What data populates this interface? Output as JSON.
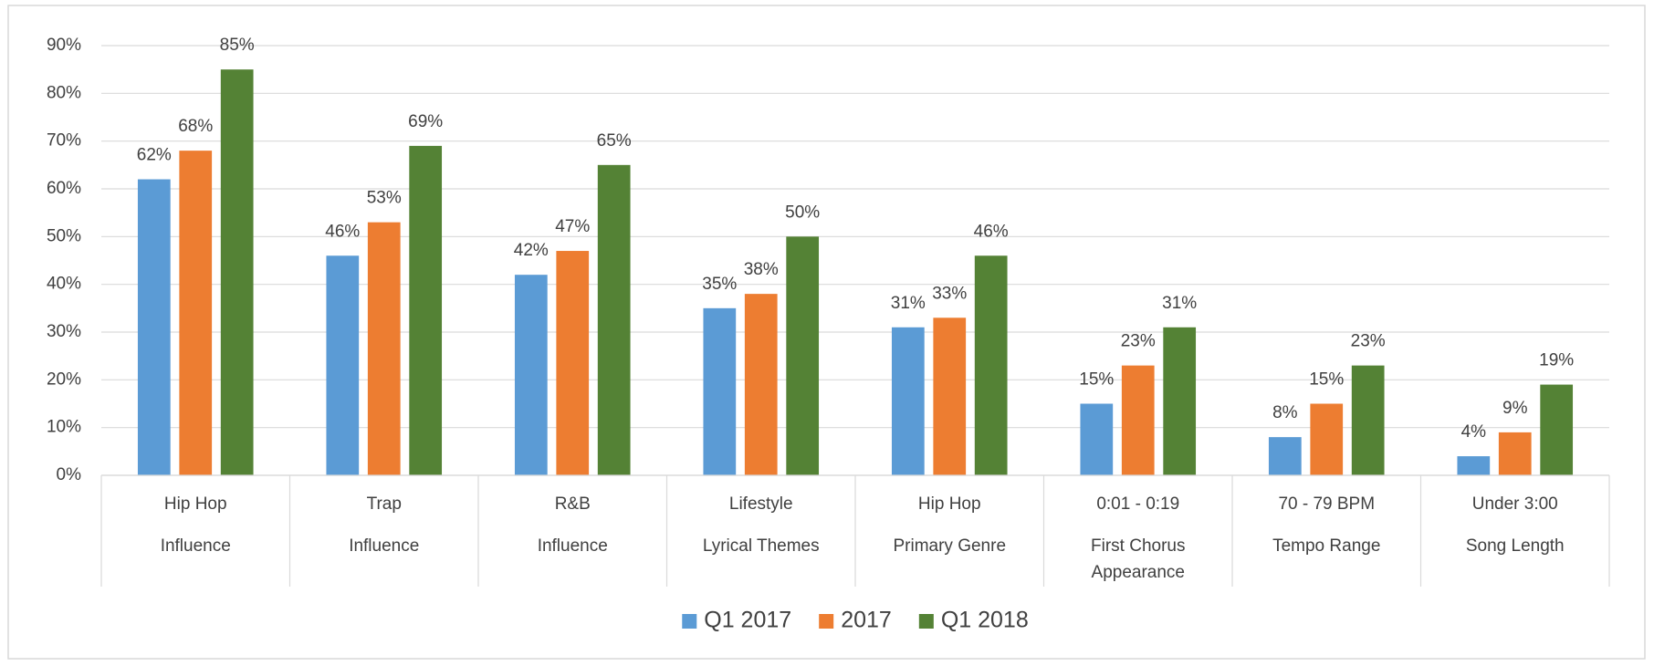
{
  "chart_data": {
    "type": "bar",
    "categories": [
      [
        "Hip Hop",
        "Influence"
      ],
      [
        "Trap",
        "Influence"
      ],
      [
        "R&B",
        "Influence"
      ],
      [
        "Lifestyle",
        "Lyrical Themes"
      ],
      [
        "Hip Hop",
        "Primary Genre"
      ],
      [
        "0:01 - 0:19",
        "First Chorus Appearance"
      ],
      [
        "70 - 79 BPM",
        "Tempo Range"
      ],
      [
        "Under 3:00",
        "Song Length"
      ]
    ],
    "series": [
      {
        "name": "Q1 2017",
        "color": "#5b9bd5",
        "values": [
          62,
          46,
          42,
          35,
          31,
          15,
          8,
          4
        ],
        "value_labels": [
          "62%",
          "46%",
          "42%",
          "35%",
          "31%",
          "15%",
          "8%",
          "4%"
        ]
      },
      {
        "name": "2017",
        "color": "#ed7d31",
        "values": [
          68,
          53,
          47,
          38,
          33,
          23,
          15,
          9
        ],
        "value_labels": [
          "68%",
          "53%",
          "47%",
          "38%",
          "33%",
          "23%",
          "15%",
          "9%"
        ]
      },
      {
        "name": "Q1 2018",
        "color": "#548235",
        "values": [
          85,
          69,
          65,
          50,
          46,
          31,
          23,
          19
        ],
        "value_labels": [
          "85%",
          "69%",
          "65%",
          "50%",
          "46%",
          "31%",
          "23%",
          "19%"
        ]
      }
    ],
    "ylim": [
      0,
      90
    ],
    "yticks": [
      {
        "value": 0,
        "label": "0%"
      },
      {
        "value": 10,
        "label": "10%"
      },
      {
        "value": 20,
        "label": "20%"
      },
      {
        "value": 30,
        "label": "30%"
      },
      {
        "value": 40,
        "label": "40%"
      },
      {
        "value": 50,
        "label": "50%"
      },
      {
        "value": 60,
        "label": "60%"
      },
      {
        "value": 70,
        "label": "70%"
      },
      {
        "value": 80,
        "label": "80%"
      },
      {
        "value": 90,
        "label": "90%"
      }
    ],
    "grid": true,
    "legend": "bottom"
  }
}
